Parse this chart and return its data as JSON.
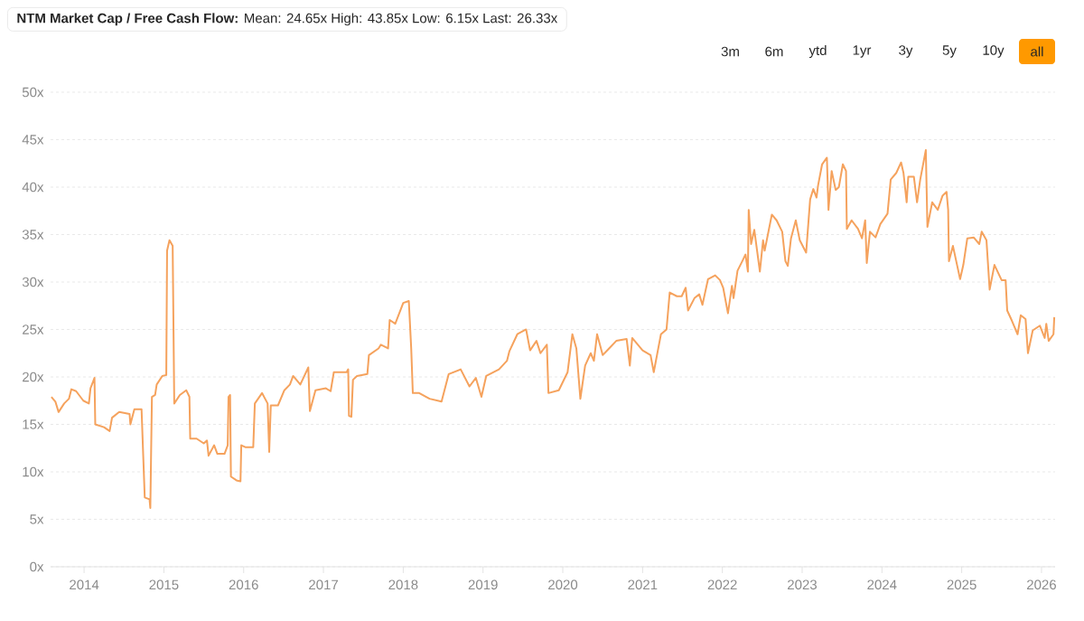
{
  "chart_data": {
    "type": "line",
    "title": "**NTM Market Cap / Free Cash Flow:** Mean: 24.65x High: 43.85x Low: 6.15x Last: 26.33x",
    "annotations": [
      "3m",
      "6m",
      "ytd",
      "1yr",
      "3y",
      "5y",
      "10y",
      "all"
    ],
    "x": [
      2013.59,
      2013.64,
      2013.68,
      2013.75,
      2013.81,
      2013.84,
      2013.9,
      2013.99,
      2014.06,
      2014.08,
      2014.13,
      2014.14,
      2014.25,
      2014.32,
      2014.35,
      2014.44,
      2014.57,
      2014.58,
      2014.63,
      2014.72,
      2014.76,
      2014.82,
      2014.83,
      2014.85,
      2014.89,
      2014.91,
      2014.98,
      2015.03,
      2015.04,
      2015.07,
      2015.11,
      2015.13,
      2015.2,
      2015.28,
      2015.32,
      2015.33,
      2015.41,
      2015.5,
      2015.54,
      2015.56,
      2015.63,
      2015.67,
      2015.76,
      2015.8,
      2015.81,
      2015.83,
      2015.84,
      2015.91,
      2015.96,
      2015.97,
      2016.02,
      2016.12,
      2016.14,
      2016.23,
      2016.3,
      2016.32,
      2016.34,
      2016.43,
      2016.51,
      2016.58,
      2016.62,
      2016.71,
      2016.81,
      2016.83,
      2016.9,
      2017.03,
      2017.09,
      2017.13,
      2017.29,
      2017.31,
      2017.32,
      2017.35,
      2017.37,
      2017.42,
      2017.55,
      2017.57,
      2017.69,
      2017.72,
      2017.81,
      2017.83,
      2017.9,
      2018.0,
      2018.07,
      2018.1,
      2018.12,
      2018.2,
      2018.33,
      2018.48,
      2018.57,
      2018.72,
      2018.83,
      2018.91,
      2018.98,
      2019.04,
      2019.2,
      2019.3,
      2019.33,
      2019.43,
      2019.54,
      2019.59,
      2019.67,
      2019.72,
      2019.8,
      2019.82,
      2019.95,
      2020.06,
      2020.12,
      2020.17,
      2020.22,
      2020.28,
      2020.35,
      2020.39,
      2020.43,
      2020.5,
      2020.58,
      2020.67,
      2020.8,
      2020.84,
      2020.87,
      2021.0,
      2021.1,
      2021.14,
      2021.23,
      2021.3,
      2021.34,
      2021.43,
      2021.49,
      2021.54,
      2021.57,
      2021.65,
      2021.71,
      2021.75,
      2021.82,
      2021.91,
      2021.97,
      2022.01,
      2022.07,
      2022.12,
      2022.14,
      2022.19,
      2022.25,
      2022.29,
      2022.32,
      2022.33,
      2022.36,
      2022.4,
      2022.47,
      2022.51,
      2022.53,
      2022.62,
      2022.68,
      2022.75,
      2022.79,
      2022.82,
      2022.86,
      2022.92,
      2022.97,
      2023.05,
      2023.1,
      2023.14,
      2023.18,
      2023.2,
      2023.25,
      2023.31,
      2023.33,
      2023.37,
      2023.42,
      2023.46,
      2023.51,
      2023.55,
      2023.56,
      2023.62,
      2023.7,
      2023.75,
      2023.79,
      2023.81,
      2023.85,
      2023.92,
      2023.98,
      2024.07,
      2024.11,
      2024.18,
      2024.24,
      2024.27,
      2024.31,
      2024.33,
      2024.4,
      2024.44,
      2024.48,
      2024.55,
      2024.57,
      2024.63,
      2024.7,
      2024.76,
      2024.81,
      2024.83,
      2024.84,
      2024.89,
      2024.98,
      2025.02,
      2025.07,
      2025.15,
      2025.22,
      2025.25,
      2025.31,
      2025.35,
      2025.41,
      2025.5,
      2025.55,
      2025.57,
      2025.63,
      2025.7,
      2025.74,
      2025.8,
      2025.83,
      2025.89,
      2025.98,
      2026.04,
      2026.06,
      2026.09,
      2026.15,
      2026.16
    ],
    "series": [
      {
        "color": "#f5a25d",
        "values": [
          17.9,
          17.4,
          16.3,
          17.2,
          17.7,
          18.7,
          18.5,
          17.5,
          17.2,
          18.8,
          19.9,
          15.0,
          14.7,
          14.3,
          15.7,
          16.3,
          16.1,
          15.0,
          16.6,
          16.6,
          7.3,
          7.1,
          6.2,
          17.9,
          18.1,
          19.2,
          20.1,
          20.2,
          33.3,
          34.4,
          33.8,
          17.2,
          18.1,
          18.6,
          17.9,
          13.5,
          13.5,
          13.0,
          13.3,
          11.7,
          12.8,
          11.9,
          11.9,
          12.8,
          17.9,
          18.1,
          9.5,
          9.1,
          9.0,
          12.8,
          12.6,
          12.6,
          17.2,
          18.3,
          17.2,
          12.1,
          17.0,
          17.0,
          18.6,
          19.2,
          20.1,
          19.2,
          21.0,
          16.4,
          18.6,
          18.8,
          18.5,
          20.5,
          20.5,
          20.8,
          15.9,
          15.8,
          19.7,
          20.1,
          20.3,
          22.3,
          23.0,
          23.4,
          23.0,
          26.0,
          25.6,
          27.8,
          28.0,
          23.0,
          18.3,
          18.3,
          17.7,
          17.4,
          20.3,
          20.8,
          19.0,
          19.9,
          17.9,
          20.1,
          20.8,
          21.7,
          22.7,
          24.5,
          25.0,
          22.8,
          23.8,
          22.5,
          23.4,
          18.3,
          18.6,
          20.5,
          24.5,
          23.0,
          17.7,
          21.2,
          22.5,
          21.7,
          24.5,
          22.3,
          23.0,
          23.8,
          24.0,
          21.2,
          24.1,
          22.8,
          22.3,
          20.5,
          24.5,
          25.0,
          28.9,
          28.5,
          28.5,
          29.4,
          27.0,
          28.3,
          28.7,
          27.6,
          30.3,
          30.7,
          30.2,
          29.4,
          26.7,
          29.6,
          28.3,
          31.2,
          32.2,
          32.9,
          31.1,
          37.6,
          34.0,
          35.5,
          31.1,
          34.4,
          33.3,
          37.1,
          36.5,
          35.3,
          32.2,
          31.7,
          34.6,
          36.5,
          34.4,
          33.1,
          38.7,
          39.8,
          38.9,
          40.2,
          42.4,
          43.1,
          37.6,
          41.7,
          39.7,
          40.0,
          42.4,
          41.7,
          35.6,
          36.5,
          35.6,
          34.6,
          36.5,
          32.0,
          35.3,
          34.7,
          36.1,
          37.2,
          40.8,
          41.5,
          42.6,
          41.5,
          38.4,
          41.1,
          41.1,
          38.4,
          40.8,
          43.9,
          35.8,
          38.4,
          37.6,
          39.1,
          39.5,
          37.6,
          32.2,
          33.8,
          30.3,
          31.8,
          34.6,
          34.7,
          34.0,
          35.3,
          34.4,
          29.2,
          31.8,
          30.2,
          30.2,
          27.0,
          25.9,
          24.5,
          26.5,
          26.1,
          22.5,
          24.9,
          25.4,
          24.1,
          25.6,
          23.8,
          24.5,
          26.3
        ]
      }
    ],
    "xlim": [
      2013.58,
      2026.17
    ],
    "xticks": [
      2014,
      2015,
      2016,
      2017,
      2018,
      2019,
      2020,
      2021,
      2022,
      2023,
      2024,
      2025,
      2026
    ],
    "ylim": [
      0,
      50
    ],
    "yticks": [
      {
        "value": 0,
        "label": "0x"
      },
      {
        "value": 5,
        "label": "5x"
      },
      {
        "value": 10,
        "label": "10x"
      },
      {
        "value": 15,
        "label": "15x"
      },
      {
        "value": 20,
        "label": "20x"
      },
      {
        "value": 25,
        "label": "25x"
      },
      {
        "value": 30,
        "label": "30x"
      },
      {
        "value": 35,
        "label": "35x"
      },
      {
        "value": 40,
        "label": "40x"
      },
      {
        "value": 45,
        "label": "45x"
      },
      {
        "value": 50,
        "label": "50x"
      }
    ],
    "grid": "y"
  }
}
